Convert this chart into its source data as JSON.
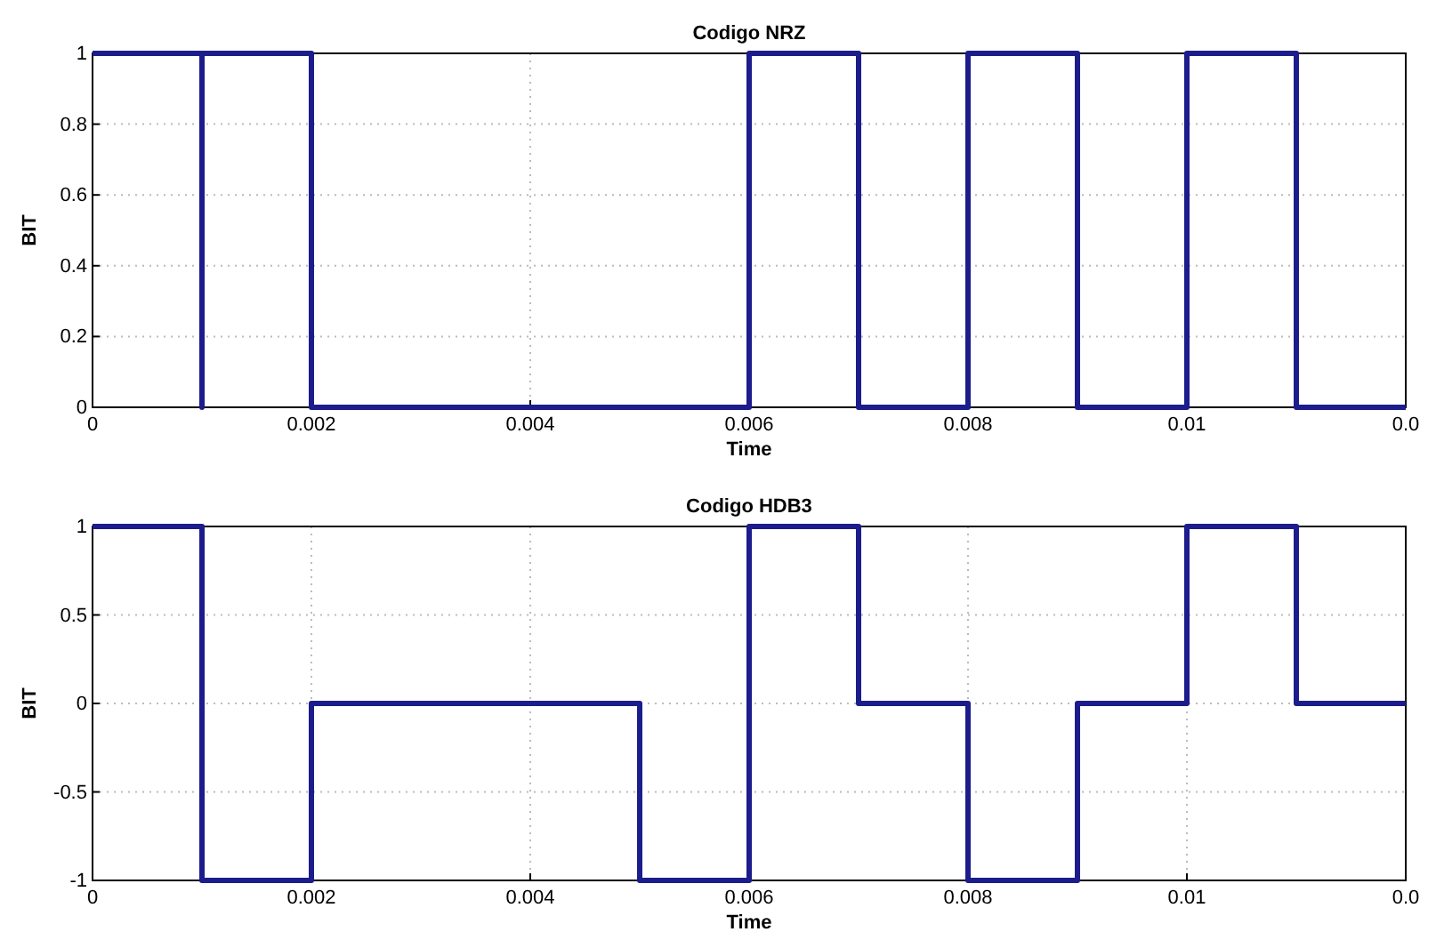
{
  "chart_data": [
    {
      "type": "line",
      "title": "Codigo NRZ",
      "xlabel": "Time",
      "ylabel": "BIT",
      "grid": true,
      "line_style": "solid",
      "marker": "none",
      "xlim": [
        0,
        0.012
      ],
      "xticks": [
        0,
        0.002,
        0.004,
        0.006,
        0.008,
        0.01,
        {
          "value": 0.012,
          "label": "0.0"
        }
      ],
      "ylim": [
        0,
        1
      ],
      "yticks": [
        0,
        0.2,
        0.4,
        0.6,
        0.8,
        1
      ],
      "series": [
        {
          "color": "#1c1c8c",
          "x": [
            0,
            0.001,
            0.001,
            0.001,
            0.002,
            0.002,
            0.006,
            0.006,
            0.007,
            0.007,
            0.008,
            0.008,
            0.009,
            0.009,
            0.01,
            0.01,
            0.011,
            0.011,
            0.012
          ],
          "values": [
            1,
            1,
            0,
            1,
            1,
            0,
            0,
            1,
            1,
            0,
            0,
            1,
            1,
            0,
            0,
            1,
            1,
            0,
            0
          ]
        }
      ]
    },
    {
      "type": "line",
      "title": "Codigo HDB3",
      "xlabel": "Time",
      "ylabel": "BIT",
      "grid": true,
      "line_style": "solid",
      "marker": "none",
      "xlim": [
        0,
        0.012
      ],
      "xticks": [
        0,
        0.002,
        0.004,
        0.006,
        0.008,
        0.01,
        {
          "value": 0.012,
          "label": "0.0"
        }
      ],
      "ylim": [
        -1,
        1
      ],
      "yticks": [
        -1,
        -0.5,
        0,
        0.5,
        1
      ],
      "series": [
        {
          "color": "#1c1c8c",
          "x": [
            0,
            0.001,
            0.001,
            0.002,
            0.002,
            0.005,
            0.005,
            0.006,
            0.006,
            0.007,
            0.007,
            0.008,
            0.008,
            0.009,
            0.009,
            0.01,
            0.01,
            0.011,
            0.011,
            0.012
          ],
          "values": [
            1,
            1,
            -1,
            -1,
            0,
            0,
            -1,
            -1,
            1,
            1,
            0,
            0,
            -1,
            -1,
            0,
            0,
            1,
            1,
            0,
            0
          ]
        }
      ]
    }
  ]
}
